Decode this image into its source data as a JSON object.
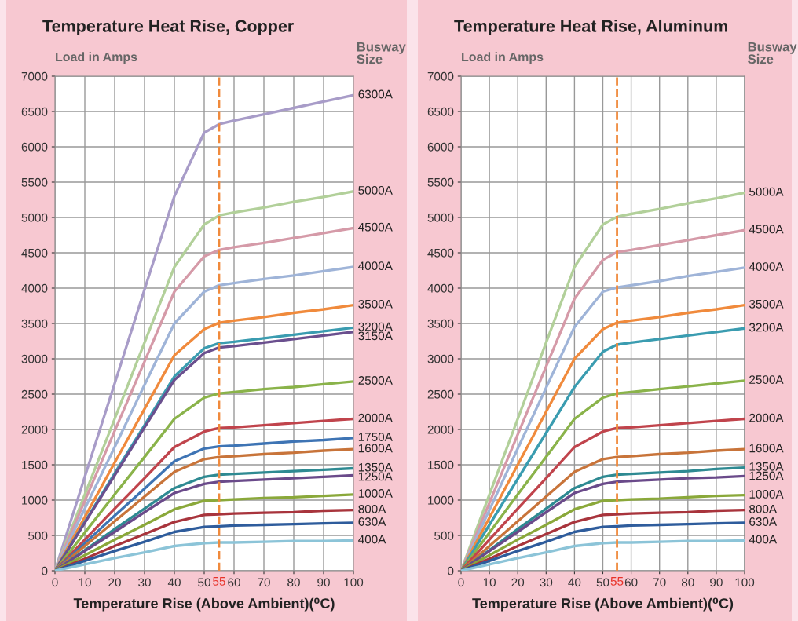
{
  "chart_data": [
    {
      "type": "line",
      "title": "Temperature Heat Rise, Copper",
      "ylabel": "Load in Amps",
      "xlabel": "Temperature Rise (Above Ambient)(⁰C)",
      "legend_title": "Busway Size",
      "x": [
        0,
        10,
        20,
        30,
        40,
        50,
        55,
        60,
        70,
        80,
        90,
        100
      ],
      "xlim": [
        0,
        100
      ],
      "ylim": [
        0,
        7000
      ],
      "xticks": [
        0,
        10,
        20,
        30,
        40,
        50,
        60,
        70,
        80,
        90,
        100
      ],
      "yticks": [
        0,
        500,
        1000,
        1500,
        2000,
        2500,
        3000,
        3500,
        4000,
        4500,
        5000,
        5500,
        6000,
        6500,
        7000
      ],
      "grid": true,
      "ref_lines": [
        {
          "axis": "x",
          "value": 55,
          "label": "55",
          "color": "#f08a3c",
          "line_style": "dashed"
        }
      ],
      "series": [
        {
          "name": "6300A",
          "color": "#a89cc8",
          "values": [
            0,
            1330,
            2650,
            3980,
            5300,
            6200,
            6320,
            6370,
            6460,
            6550,
            6640,
            6730
          ]
        },
        {
          "name": "5000A",
          "color": "#b2d09a",
          "values": [
            0,
            1080,
            2150,
            3230,
            4300,
            4900,
            5030,
            5070,
            5140,
            5220,
            5290,
            5370
          ]
        },
        {
          "name": "4500A",
          "color": "#d59aa8",
          "values": [
            0,
            990,
            1980,
            2960,
            3950,
            4450,
            4540,
            4580,
            4640,
            4710,
            4780,
            4850
          ]
        },
        {
          "name": "4000A",
          "color": "#9fb4d8",
          "values": [
            0,
            880,
            1750,
            2630,
            3500,
            3950,
            4040,
            4070,
            4130,
            4180,
            4240,
            4300
          ]
        },
        {
          "name": "3500A",
          "color": "#f08a3c",
          "values": [
            0,
            760,
            1530,
            2290,
            3050,
            3420,
            3510,
            3540,
            3590,
            3650,
            3700,
            3760
          ]
        },
        {
          "name": "3200A",
          "color": "#3a9cb0",
          "values": [
            0,
            690,
            1380,
            2060,
            2750,
            3150,
            3220,
            3240,
            3290,
            3340,
            3390,
            3440
          ]
        },
        {
          "name": "3150A",
          "color": "#6a4f8e",
          "values": [
            0,
            680,
            1350,
            2030,
            2700,
            3080,
            3160,
            3180,
            3230,
            3280,
            3330,
            3380
          ]
        },
        {
          "name": "2500A",
          "color": "#8ab34a",
          "values": [
            0,
            540,
            1080,
            1610,
            2150,
            2450,
            2510,
            2530,
            2570,
            2600,
            2640,
            2680
          ]
        },
        {
          "name": "2000A",
          "color": "#c0444c",
          "values": [
            0,
            440,
            880,
            1310,
            1750,
            1970,
            2020,
            2030,
            2060,
            2090,
            2120,
            2150
          ]
        },
        {
          "name": "1750A",
          "color": "#3e74b4",
          "values": [
            0,
            390,
            780,
            1160,
            1550,
            1730,
            1760,
            1770,
            1800,
            1830,
            1850,
            1880
          ]
        },
        {
          "name": "1600A",
          "color": "#c8743a",
          "values": [
            0,
            350,
            700,
            1050,
            1400,
            1580,
            1610,
            1620,
            1650,
            1670,
            1700,
            1720
          ]
        },
        {
          "name": "1350A",
          "color": "#2e8a92",
          "values": [
            0,
            290,
            590,
            880,
            1170,
            1330,
            1360,
            1370,
            1390,
            1410,
            1430,
            1450
          ]
        },
        {
          "name": "1250A",
          "color": "#6a4a8a",
          "values": [
            0,
            280,
            550,
            830,
            1100,
            1230,
            1260,
            1270,
            1290,
            1310,
            1330,
            1350
          ]
        },
        {
          "name": "1000A",
          "color": "#8aa83a",
          "values": [
            0,
            220,
            440,
            650,
            870,
            990,
            1000,
            1010,
            1030,
            1040,
            1060,
            1080
          ]
        },
        {
          "name": "800A",
          "color": "#a8343c",
          "values": [
            0,
            170,
            350,
            520,
            690,
            790,
            800,
            810,
            820,
            830,
            850,
            860
          ]
        },
        {
          "name": "630A",
          "color": "#2e5c9c",
          "values": [
            0,
            140,
            280,
            410,
            550,
            620,
            630,
            640,
            650,
            660,
            670,
            680
          ]
        },
        {
          "name": "400A",
          "color": "#8cc4d8",
          "values": [
            0,
            90,
            180,
            260,
            350,
            390,
            400,
            400,
            410,
            420,
            420,
            430
          ]
        }
      ]
    },
    {
      "type": "line",
      "title": "Temperature Heat Rise, Aluminum",
      "ylabel": "Load in Amps",
      "xlabel": "Temperature Rise (Above Ambient)(⁰C)",
      "legend_title": "Busway Size",
      "x": [
        0,
        10,
        20,
        30,
        40,
        50,
        55,
        60,
        70,
        80,
        90,
        100
      ],
      "xlim": [
        0,
        100
      ],
      "ylim": [
        0,
        7000
      ],
      "xticks": [
        0,
        10,
        20,
        30,
        40,
        50,
        60,
        70,
        80,
        90,
        100
      ],
      "yticks": [
        0,
        500,
        1000,
        1500,
        2000,
        2500,
        3000,
        3500,
        4000,
        4500,
        5000,
        5500,
        6000,
        6500,
        7000
      ],
      "grid": true,
      "ref_lines": [
        {
          "axis": "x",
          "value": 55,
          "label": "55",
          "color": "#f08a3c",
          "line_style": "dashed"
        }
      ],
      "series": [
        {
          "name": "5000A",
          "color": "#b2d09a",
          "values": [
            0,
            1080,
            2150,
            3230,
            4300,
            4900,
            5010,
            5050,
            5120,
            5200,
            5270,
            5350
          ]
        },
        {
          "name": "4500A",
          "color": "#d59aa8",
          "values": [
            0,
            960,
            1930,
            2890,
            3850,
            4400,
            4510,
            4540,
            4610,
            4680,
            4750,
            4820
          ]
        },
        {
          "name": "4000A",
          "color": "#9fb4d8",
          "values": [
            0,
            860,
            1730,
            2590,
            3450,
            3950,
            4010,
            4040,
            4100,
            4170,
            4230,
            4290
          ]
        },
        {
          "name": "3500A",
          "color": "#f08a3c",
          "values": [
            0,
            750,
            1500,
            2250,
            3000,
            3420,
            3510,
            3540,
            3590,
            3650,
            3700,
            3760
          ]
        },
        {
          "name": "3200A",
          "color": "#3a9cb0",
          "values": [
            0,
            650,
            1300,
            1950,
            2600,
            3100,
            3200,
            3230,
            3280,
            3330,
            3380,
            3430
          ]
        },
        {
          "name": "2500A",
          "color": "#8ab34a",
          "values": [
            0,
            540,
            1080,
            1610,
            2150,
            2450,
            2510,
            2530,
            2570,
            2610,
            2650,
            2690
          ]
        },
        {
          "name": "2000A",
          "color": "#c0444c",
          "values": [
            0,
            440,
            880,
            1310,
            1750,
            1970,
            2020,
            2030,
            2060,
            2090,
            2120,
            2150
          ]
        },
        {
          "name": "1600A",
          "color": "#c8743a",
          "values": [
            0,
            350,
            700,
            1050,
            1400,
            1580,
            1610,
            1620,
            1650,
            1670,
            1700,
            1720
          ]
        },
        {
          "name": "1350A",
          "color": "#2e8a92",
          "values": [
            0,
            290,
            590,
            880,
            1170,
            1330,
            1360,
            1370,
            1390,
            1410,
            1440,
            1460
          ]
        },
        {
          "name": "1250A",
          "color": "#6a4a8a",
          "values": [
            0,
            280,
            550,
            830,
            1100,
            1230,
            1260,
            1270,
            1290,
            1310,
            1320,
            1340
          ]
        },
        {
          "name": "1000A",
          "color": "#8aa83a",
          "values": [
            0,
            220,
            440,
            650,
            870,
            990,
            1000,
            1010,
            1020,
            1040,
            1060,
            1070
          ]
        },
        {
          "name": "800A",
          "color": "#a8343c",
          "values": [
            0,
            170,
            350,
            520,
            690,
            790,
            800,
            810,
            820,
            830,
            850,
            860
          ]
        },
        {
          "name": "630A",
          "color": "#2e5c9c",
          "values": [
            0,
            140,
            280,
            410,
            550,
            620,
            630,
            640,
            650,
            660,
            670,
            680
          ]
        },
        {
          "name": "400A",
          "color": "#8cc4d8",
          "values": [
            0,
            90,
            180,
            260,
            350,
            390,
            400,
            400,
            410,
            420,
            420,
            430
          ]
        }
      ]
    }
  ]
}
